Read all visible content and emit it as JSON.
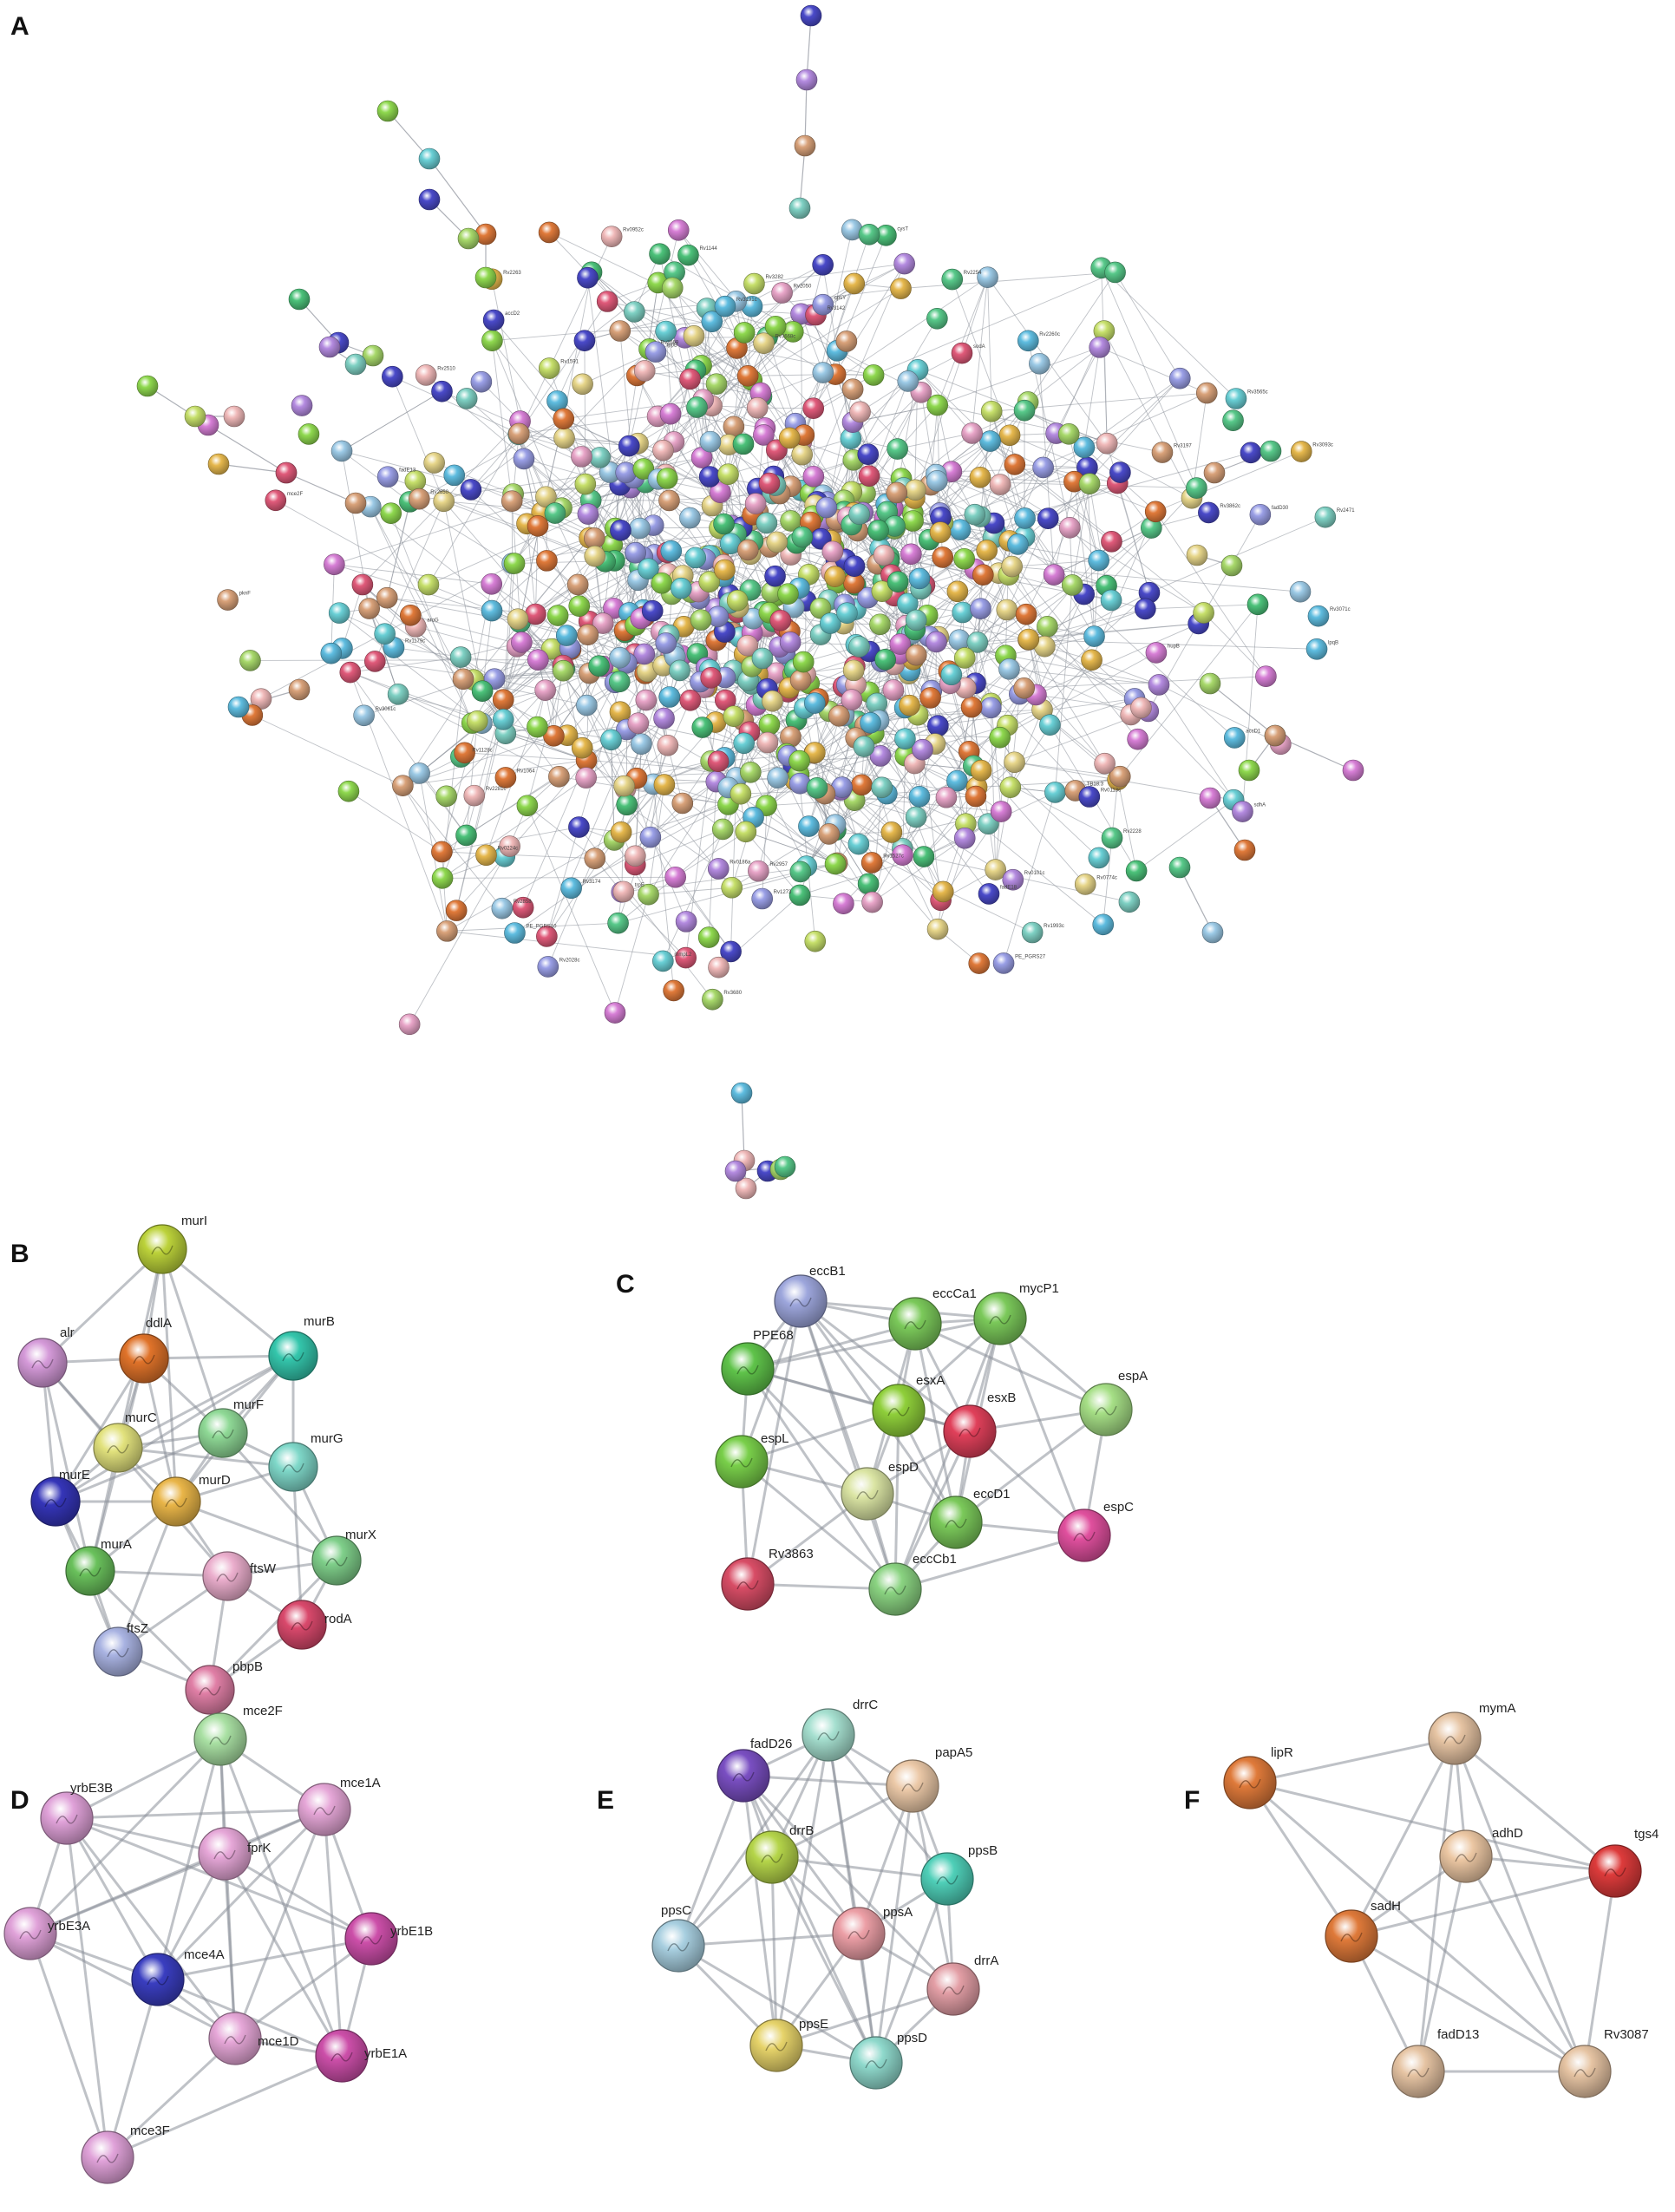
{
  "panels": [
    {
      "letter": "A",
      "type": "large-network"
    },
    {
      "letter": "B",
      "nodes": [
        {
          "label": "murI",
          "color": "#bcd23a"
        },
        {
          "label": "alr",
          "color": "#d59ad9"
        },
        {
          "label": "ddlA",
          "color": "#e0732a"
        },
        {
          "label": "murB",
          "color": "#34c6ac"
        },
        {
          "label": "murC",
          "color": "#e2e27d"
        },
        {
          "label": "murF",
          "color": "#8fd996"
        },
        {
          "label": "murG",
          "color": "#7fd8c9"
        },
        {
          "label": "murE",
          "color": "#3535b8"
        },
        {
          "label": "murD",
          "color": "#e9b548"
        },
        {
          "label": "murX",
          "color": "#7fcf8a"
        },
        {
          "label": "murA",
          "color": "#6ac15c"
        },
        {
          "label": "ftsW",
          "color": "#ebaecd"
        },
        {
          "label": "rodA",
          "color": "#d9496c"
        },
        {
          "label": "ftsZ",
          "color": "#a9b3e2"
        },
        {
          "label": "pbpB",
          "color": "#e07fa6"
        }
      ]
    },
    {
      "letter": "C",
      "nodes": [
        {
          "label": "eccB1",
          "color": "#9da6dc"
        },
        {
          "label": "eccCa1",
          "color": "#7bc95a"
        },
        {
          "label": "mycP1",
          "color": "#7bc95a"
        },
        {
          "label": "PPE68",
          "color": "#5fc34a"
        },
        {
          "label": "esxA",
          "color": "#8fcf3a"
        },
        {
          "label": "esxB",
          "color": "#e0405a"
        },
        {
          "label": "espA",
          "color": "#a6df86"
        },
        {
          "label": "espL",
          "color": "#79cf4a"
        },
        {
          "label": "espD",
          "color": "#dbe5a4"
        },
        {
          "label": "eccD1",
          "color": "#7bc95a"
        },
        {
          "label": "espC",
          "color": "#e0509e"
        },
        {
          "label": "Rv3863",
          "color": "#d84d66"
        },
        {
          "label": "eccCb1",
          "color": "#8ad381"
        }
      ]
    },
    {
      "letter": "D",
      "nodes": [
        {
          "label": "mce2F",
          "color": "#a9e0a3"
        },
        {
          "label": "yrbE3B",
          "color": "#e0a2d9"
        },
        {
          "label": "mce1A",
          "color": "#e6a7d8"
        },
        {
          "label": "fprK",
          "color": "#e6a7d8"
        },
        {
          "label": "yrbE3A",
          "color": "#e0a2d9"
        },
        {
          "label": "yrbE1B",
          "color": "#cc4fa9"
        },
        {
          "label": "mce4A",
          "color": "#3a3ec0"
        },
        {
          "label": "mce1D",
          "color": "#e6a7d8"
        },
        {
          "label": "yrbE1A",
          "color": "#cc4fa9"
        },
        {
          "label": "mce3F",
          "color": "#e0a2d9"
        }
      ]
    },
    {
      "letter": "E",
      "nodes": [
        {
          "label": "drrC",
          "color": "#a6e0d0"
        },
        {
          "label": "fadD26",
          "color": "#7a4fc2"
        },
        {
          "label": "papA5",
          "color": "#ecc9a8"
        },
        {
          "label": "drrB",
          "color": "#b5d54a"
        },
        {
          "label": "ppsB",
          "color": "#4fcfb8"
        },
        {
          "label": "ppsC",
          "color": "#a8cfe0"
        },
        {
          "label": "ppsA",
          "color": "#ec9fa6"
        },
        {
          "label": "drrA",
          "color": "#e39fa6"
        },
        {
          "label": "ppsE",
          "color": "#e6d36a"
        },
        {
          "label": "ppsD",
          "color": "#8fd9cc"
        }
      ]
    },
    {
      "letter": "F",
      "nodes": [
        {
          "label": "mymA",
          "color": "#e6c4a3"
        },
        {
          "label": "lipR",
          "color": "#df7a3a"
        },
        {
          "label": "adhD",
          "color": "#ecc7a3"
        },
        {
          "label": "tgs4",
          "color": "#dd3b3b"
        },
        {
          "label": "sadH",
          "color": "#df7a3a"
        },
        {
          "label": "fadD13",
          "color": "#e6c4a3"
        },
        {
          "label": "Rv3087",
          "color": "#e6c4a3"
        }
      ]
    }
  ],
  "panel_a_labels": [
    "hupB",
    "accD2",
    "Rv3668c",
    "Rv0774c",
    "Rv0101c",
    "Rv0186a",
    "sodA",
    "sdhA",
    "cysT",
    "mce2F",
    "PE_PGRS10",
    "PE_PGRS27",
    "Rv3680",
    "fadD30",
    "Rv2471",
    "Rv2858",
    "Rv1064",
    "Rv3142",
    "fadE18",
    "Rv3191c",
    "Rv2028c",
    "pknF",
    "aroG",
    "Rv1273",
    "trpE",
    "Rv2254",
    "accD1",
    "lpqB",
    "Rv3093c",
    "Rv1144",
    "Rv2050",
    "Rv2228",
    "fadE13",
    "Rv1527c",
    "TB18.3",
    "Rv3174",
    "Rv3197",
    "Rv0113c",
    "Rv2510",
    "Rv1993c",
    "Rv3282",
    "Rv2669",
    "lppB",
    "Rv2850",
    "Rv3071c",
    "Rv2281c",
    "Rv3862c",
    "Rv3061c",
    "Rv2263",
    "Rv3565c",
    "cpsY",
    "Rv1591",
    "Rv0224c",
    "Rv0952c",
    "Rv2260c",
    "mmpL2",
    "Rv1179c",
    "Rv1128c",
    "Rv2957"
  ]
}
